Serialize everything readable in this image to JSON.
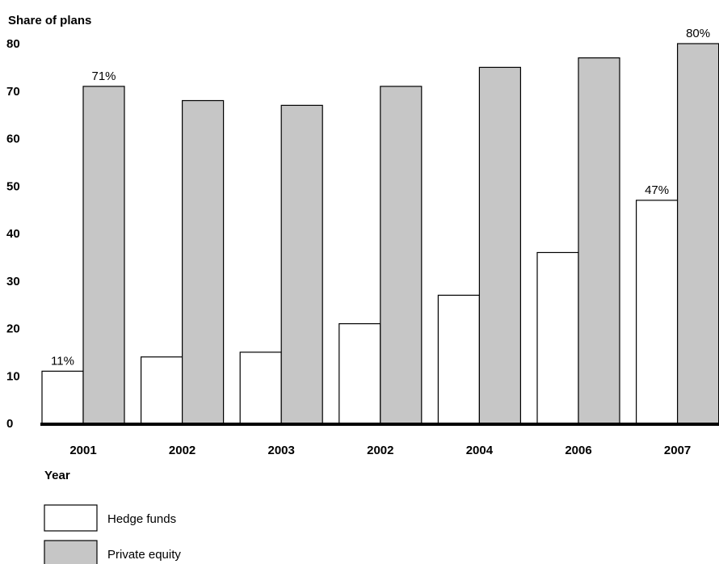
{
  "chart_data": {
    "type": "bar",
    "ylabel": "Share of plans",
    "xlabel": "Year",
    "ylim": [
      0,
      80
    ],
    "yticks": [
      0,
      10,
      20,
      30,
      40,
      50,
      60,
      70,
      80
    ],
    "categories": [
      "2001",
      "2002",
      "2003",
      "2002",
      "2004",
      "2006",
      "2007"
    ],
    "series": [
      {
        "name": "Hedge funds",
        "color": "#ffffff",
        "values": [
          11,
          14,
          15,
          21,
          27,
          36,
          47
        ]
      },
      {
        "name": "Private equity",
        "color": "#c6c6c6",
        "values": [
          71,
          68,
          67,
          71,
          75,
          77,
          80
        ]
      }
    ],
    "data_labels": [
      {
        "series": 0,
        "index": 0,
        "text": "11%"
      },
      {
        "series": 1,
        "index": 0,
        "text": "71%"
      },
      {
        "series": 0,
        "index": 6,
        "text": "47%"
      },
      {
        "series": 1,
        "index": 6,
        "text": "80%"
      }
    ],
    "grid": false,
    "legend_position": "bottom-left"
  }
}
